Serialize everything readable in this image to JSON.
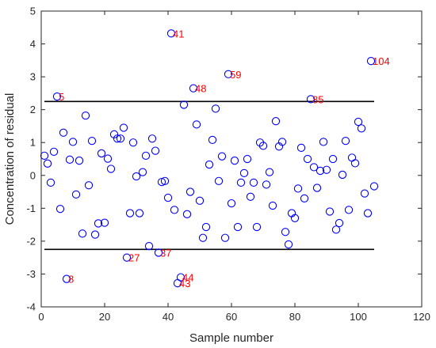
{
  "chart_data": {
    "type": "scatter",
    "title": "",
    "xlabel": "Sample number",
    "ylabel": "Concentration of residual",
    "xlim": [
      0,
      120
    ],
    "ylim": [
      -4,
      5
    ],
    "xticks": [
      "0",
      "20",
      "40",
      "60",
      "80",
      "100",
      "120"
    ],
    "yticks": [
      "-4",
      "-3",
      "-2",
      "-1",
      "0",
      "1",
      "2",
      "3",
      "4",
      "5"
    ],
    "grid": false,
    "marker": "open-circle",
    "marker_color": "#0000ff",
    "label_color": "#ff0000",
    "thresholds": [
      2.25,
      -2.25
    ],
    "threshold_x_range": [
      1,
      105
    ],
    "points": [
      [
        1,
        0.6
      ],
      [
        2,
        0.36
      ],
      [
        3,
        -0.22
      ],
      [
        4,
        0.72
      ],
      [
        5,
        2.4
      ],
      [
        6,
        -1.02
      ],
      [
        7,
        1.3
      ],
      [
        8,
        -3.15
      ],
      [
        9,
        0.48
      ],
      [
        10,
        1.02
      ],
      [
        11,
        -0.58
      ],
      [
        12,
        0.45
      ],
      [
        13,
        -1.77
      ],
      [
        14,
        1.82
      ],
      [
        15,
        -0.3
      ],
      [
        16,
        1.05
      ],
      [
        17,
        -1.8
      ],
      [
        18,
        -1.46
      ],
      [
        19,
        0.67
      ],
      [
        20,
        -1.44
      ],
      [
        21,
        0.51
      ],
      [
        22,
        0.2
      ],
      [
        23,
        1.25
      ],
      [
        24,
        1.12
      ],
      [
        25,
        1.12
      ],
      [
        26,
        1.45
      ],
      [
        27,
        -2.5
      ],
      [
        28,
        -1.15
      ],
      [
        29,
        1.0
      ],
      [
        30,
        -0.03
      ],
      [
        31,
        -1.15
      ],
      [
        32,
        0.1
      ],
      [
        33,
        0.6
      ],
      [
        34,
        -2.15
      ],
      [
        35,
        1.12
      ],
      [
        36,
        0.75
      ],
      [
        37,
        -2.35
      ],
      [
        38,
        -0.2
      ],
      [
        39,
        -0.17
      ],
      [
        40,
        -0.68
      ],
      [
        41,
        4.32
      ],
      [
        42,
        -1.05
      ],
      [
        43,
        -3.28
      ],
      [
        44,
        -3.1
      ],
      [
        45,
        2.15
      ],
      [
        46,
        -1.18
      ],
      [
        47,
        -0.5
      ],
      [
        48,
        2.65
      ],
      [
        49,
        1.55
      ],
      [
        50,
        -0.77
      ],
      [
        51,
        -1.9
      ],
      [
        52,
        -1.57
      ],
      [
        53,
        0.33
      ],
      [
        54,
        1.08
      ],
      [
        55,
        2.03
      ],
      [
        56,
        -0.17
      ],
      [
        57,
        0.58
      ],
      [
        58,
        -1.9
      ],
      [
        59,
        3.08
      ],
      [
        60,
        -0.85
      ],
      [
        61,
        0.45
      ],
      [
        62,
        -1.57
      ],
      [
        63,
        -0.22
      ],
      [
        64,
        0.07
      ],
      [
        65,
        0.5
      ],
      [
        66,
        -0.65
      ],
      [
        67,
        -0.22
      ],
      [
        68,
        -1.57
      ],
      [
        69,
        1.0
      ],
      [
        70,
        0.9
      ],
      [
        71,
        -0.28
      ],
      [
        72,
        0.1
      ],
      [
        73,
        -0.92
      ],
      [
        74,
        1.65
      ],
      [
        75,
        0.88
      ],
      [
        76,
        1.02
      ],
      [
        77,
        -1.72
      ],
      [
        78,
        -2.1
      ],
      [
        79,
        -1.15
      ],
      [
        80,
        -1.3
      ],
      [
        81,
        -0.4
      ],
      [
        82,
        0.84
      ],
      [
        83,
        -0.7
      ],
      [
        84,
        0.5
      ],
      [
        85,
        2.32
      ],
      [
        86,
        0.25
      ],
      [
        87,
        -0.38
      ],
      [
        88,
        0.14
      ],
      [
        89,
        1.02
      ],
      [
        90,
        0.17
      ],
      [
        91,
        -1.1
      ],
      [
        92,
        0.5
      ],
      [
        93,
        -1.65
      ],
      [
        94,
        -1.45
      ],
      [
        95,
        0.02
      ],
      [
        96,
        1.05
      ],
      [
        97,
        -1.05
      ],
      [
        98,
        0.54
      ],
      [
        99,
        0.37
      ],
      [
        100,
        1.63
      ],
      [
        101,
        1.43
      ],
      [
        102,
        -0.55
      ],
      [
        103,
        -1.15
      ],
      [
        104,
        3.48
      ],
      [
        105,
        -0.33
      ]
    ],
    "annotations": [
      {
        "text": "5",
        "x": 5,
        "y": 2.4
      },
      {
        "text": "8",
        "x": 8,
        "y": -3.15
      },
      {
        "text": "27",
        "x": 27,
        "y": -2.5
      },
      {
        "text": "37",
        "x": 37,
        "y": -2.35
      },
      {
        "text": "41",
        "x": 41,
        "y": 4.32
      },
      {
        "text": "43",
        "x": 43,
        "y": -3.28
      },
      {
        "text": "44",
        "x": 44,
        "y": -3.1
      },
      {
        "text": "48",
        "x": 48,
        "y": 2.65
      },
      {
        "text": "59",
        "x": 59,
        "y": 3.08
      },
      {
        "text": "85",
        "x": 85,
        "y": 2.32
      },
      {
        "text": "104",
        "x": 104,
        "y": 3.48
      }
    ]
  }
}
